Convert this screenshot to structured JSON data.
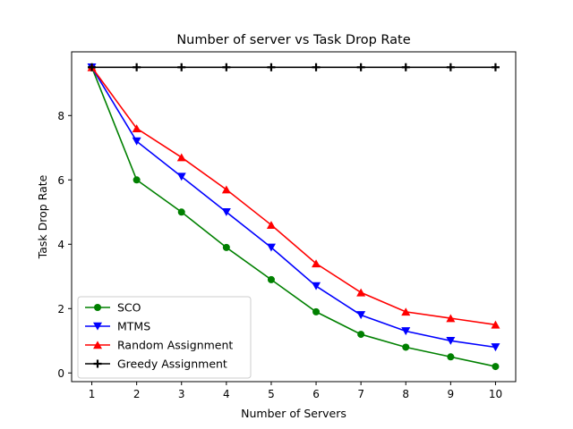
{
  "chart_data": {
    "type": "line",
    "title": "Number of server vs Task Drop Rate",
    "xlabel": "Number of Servers",
    "ylabel": "Task Drop Rate",
    "x": [
      1,
      2,
      3,
      4,
      5,
      6,
      7,
      8,
      9,
      10
    ],
    "xticks": [
      "1",
      "2",
      "3",
      "4",
      "5",
      "6",
      "7",
      "8",
      "9",
      "10"
    ],
    "yticks": [
      "0",
      "2",
      "4",
      "6",
      "8"
    ],
    "xlim": [
      0.55,
      10.45
    ],
    "ylim": [
      -0.27,
      9.98
    ],
    "grid": false,
    "legend_position": "lower-left",
    "series": [
      {
        "name": "SCO",
        "color": "#008000",
        "marker": "circle",
        "values": [
          9.5,
          6.0,
          5.0,
          3.9,
          2.9,
          1.9,
          1.2,
          0.8,
          0.5,
          0.2
        ]
      },
      {
        "name": "MTMS",
        "color": "#0000ff",
        "marker": "triangle-down",
        "values": [
          9.5,
          7.2,
          6.1,
          5.0,
          3.9,
          2.7,
          1.8,
          1.3,
          1.0,
          0.8
        ]
      },
      {
        "name": "Random Assignment",
        "color": "#ff0000",
        "marker": "triangle-up",
        "values": [
          9.5,
          7.6,
          6.7,
          5.7,
          4.6,
          3.4,
          2.5,
          1.9,
          1.7,
          1.5
        ]
      },
      {
        "name": "Greedy Assignment",
        "color": "#000000",
        "marker": "plus",
        "values": [
          9.5,
          9.5,
          9.5,
          9.5,
          9.5,
          9.5,
          9.5,
          9.5,
          9.5,
          9.5
        ]
      }
    ]
  }
}
